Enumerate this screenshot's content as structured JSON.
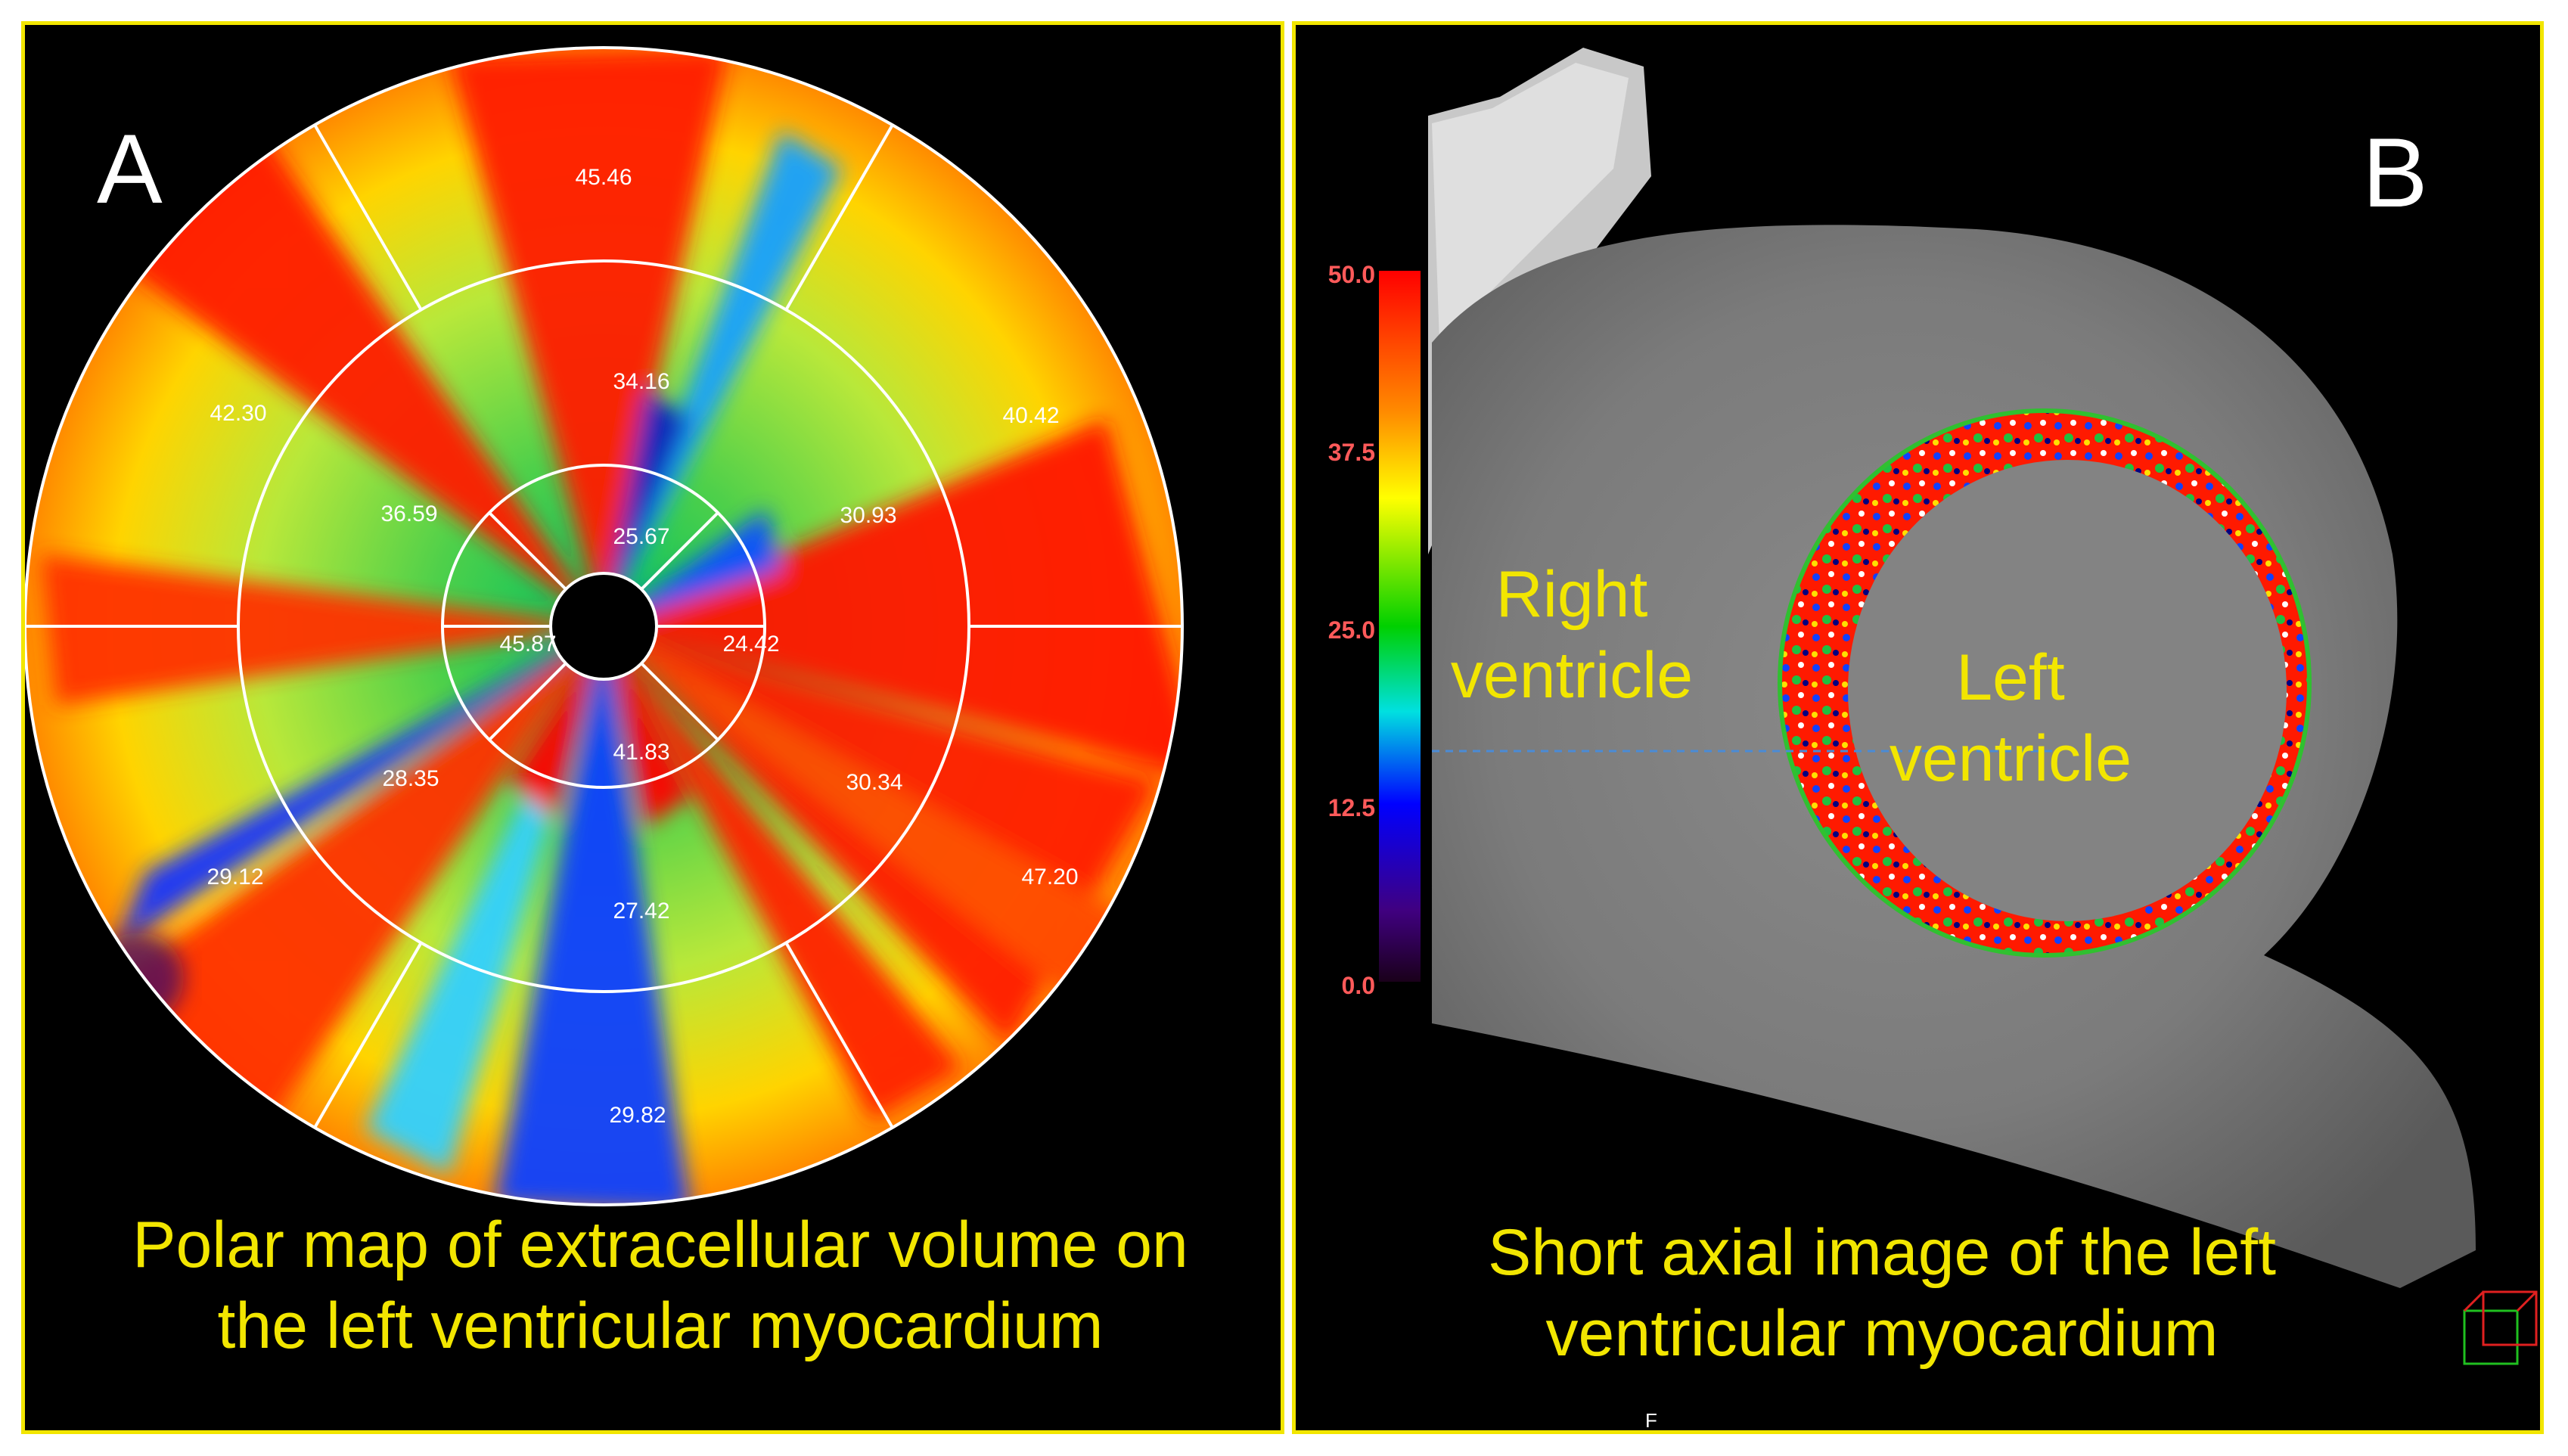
{
  "panel_a": {
    "letter": "A",
    "caption": "Polar map of extracellular volume on the left ventricular myocardium",
    "segments": {
      "outer": [
        "45.46",
        "40.42",
        "47.20",
        "29.82",
        "29.12",
        "42.30"
      ],
      "middle": [
        "34.16",
        "30.93",
        "30.34",
        "27.42",
        "28.35",
        "36.59"
      ],
      "inner": [
        "25.67",
        "24.42",
        "41.83",
        "45.87"
      ]
    }
  },
  "panel_b": {
    "letter": "B",
    "caption": "Short axial image of the left ventricular myocardium",
    "label_rv": "Right ventricle",
    "label_lv": "Left ventricle",
    "scale_ticks": [
      "50.0",
      "37.5",
      "25.0",
      "12.5",
      "0.0"
    ],
    "bottom_mark": "F"
  },
  "colors": {
    "frame": "#f2e600",
    "caption_text": "#f2e600",
    "scale_text": "#ff5a5a"
  }
}
